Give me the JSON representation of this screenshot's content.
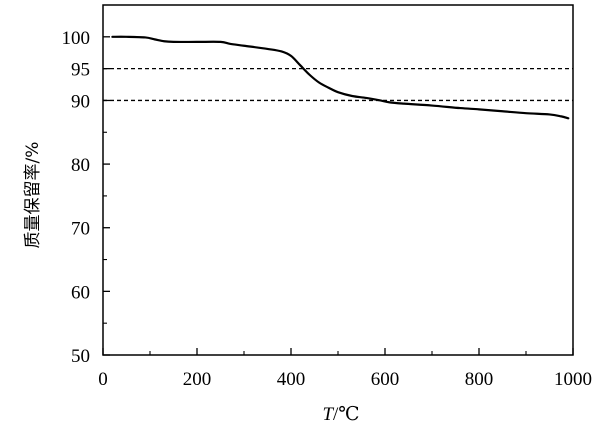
{
  "chart_data": {
    "type": "line",
    "xlabel_var": "T",
    "xlabel_unit": "/℃",
    "ylabel": "质量保留率/%",
    "xlim": [
      0,
      1000
    ],
    "ylim": [
      50,
      105
    ],
    "xticks": [
      0,
      200,
      400,
      600,
      800,
      1000
    ],
    "yticks": [
      50,
      60,
      70,
      80,
      90,
      95,
      100
    ],
    "grid": false,
    "reference_lines": [
      95,
      90
    ],
    "series": [
      {
        "x": [
          20,
          50,
          90,
          110,
          130,
          150,
          200,
          250,
          270,
          300,
          350,
          380,
          400,
          420,
          440,
          460,
          480,
          500,
          530,
          560,
          590,
          610,
          640,
          700,
          760,
          800,
          850,
          900,
          950,
          975,
          990
        ],
        "y": [
          100,
          100,
          99.9,
          99.6,
          99.3,
          99.2,
          99.2,
          99.2,
          98.9,
          98.6,
          98.1,
          97.7,
          97.0,
          95.5,
          94.0,
          92.8,
          92.0,
          91.3,
          90.7,
          90.4,
          90.0,
          89.7,
          89.5,
          89.2,
          88.8,
          88.6,
          88.3,
          88.0,
          87.8,
          87.5,
          87.2
        ]
      }
    ]
  }
}
